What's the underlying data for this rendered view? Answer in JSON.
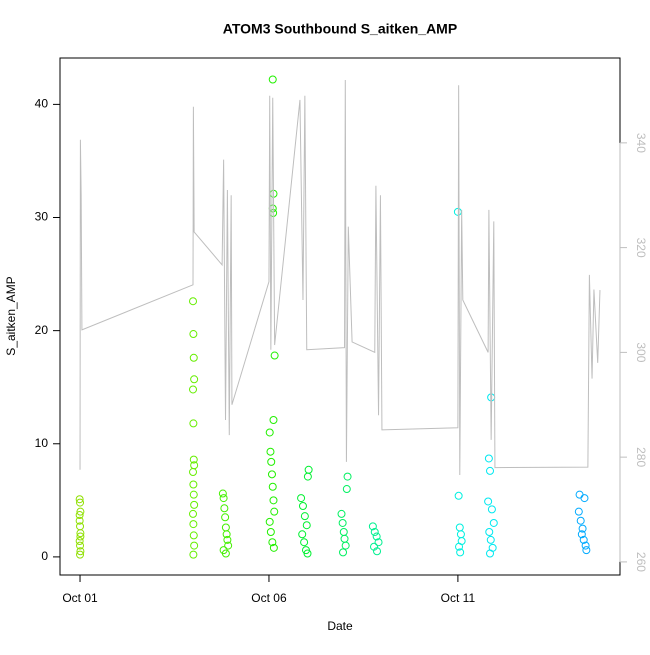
{
  "chart_data": {
    "type": "scatter",
    "title": "ATOM3 Southbound S_aitken_AMP",
    "xlabel": "Date",
    "ylabel": "S_aitken_AMP",
    "xlim": [
      0.47,
      15.29
    ],
    "xticks": [
      {
        "value": 1,
        "label": "Oct 01"
      },
      {
        "value": 6,
        "label": "Oct 06"
      },
      {
        "value": 11,
        "label": "Oct 11"
      }
    ],
    "ylim": [
      -1.6,
      44.1
    ],
    "yticks": [
      0,
      10,
      20,
      30,
      40
    ],
    "y2lim": [
      257.5,
      356.2
    ],
    "y2ticks": [
      260,
      280,
      300,
      320,
      340
    ],
    "series": [
      {
        "type": "scatter",
        "color": "#8fe000",
        "x": [
          0.99,
          1.0,
          1.01,
          0.99,
          1.0,
          1.01,
          0.99,
          1.0,
          1.01,
          1.0,
          0.99,
          1.01
        ],
        "values": [
          5.1,
          4.8,
          4.0,
          3.7,
          2.7,
          1.8,
          1.4,
          1.0,
          0.5,
          0.2,
          3.2,
          2.1
        ]
      },
      {
        "type": "scatter",
        "color": "#66ee00",
        "x": [
          3.99,
          4.0,
          4.01,
          4.02,
          3.99,
          4.0,
          4.01,
          4.02,
          3.99,
          4.0,
          4.01,
          4.02,
          3.99,
          4.0,
          4.01,
          4.02,
          4.0
        ],
        "values": [
          22.6,
          19.7,
          17.6,
          15.7,
          14.8,
          11.8,
          8.6,
          8.1,
          7.5,
          6.4,
          5.5,
          4.6,
          3.8,
          2.9,
          1.9,
          1.0,
          0.2
        ]
      },
      {
        "type": "scatter",
        "color": "#44f000",
        "x": [
          4.78,
          4.8,
          4.82,
          4.84,
          4.86,
          4.88,
          4.9,
          4.92,
          4.8,
          4.86
        ],
        "values": [
          5.6,
          5.2,
          4.3,
          3.5,
          2.6,
          2.0,
          1.5,
          1.0,
          0.6,
          0.3
        ]
      },
      {
        "type": "scatter",
        "color": "#22f000",
        "x": [
          6.1,
          6.12,
          6.1,
          6.11,
          6.15,
          6.12,
          6.02,
          6.04,
          6.06,
          6.08,
          6.1,
          6.12,
          6.14,
          6.02,
          6.05,
          6.09,
          6.13
        ],
        "values": [
          42.2,
          32.1,
          30.8,
          30.4,
          17.8,
          12.1,
          11.0,
          9.3,
          8.4,
          7.3,
          6.2,
          5.0,
          4.0,
          3.1,
          2.2,
          1.3,
          0.8
        ]
      },
      {
        "type": "scatter",
        "color": "#00f030",
        "x": [
          7.05,
          7.03,
          6.85,
          6.9,
          6.95,
          7.0,
          6.88,
          6.93,
          6.98,
          7.02
        ],
        "values": [
          7.7,
          7.1,
          5.2,
          4.5,
          3.6,
          2.8,
          2.0,
          1.3,
          0.6,
          0.3
        ]
      },
      {
        "type": "scatter",
        "color": "#00f060",
        "x": [
          8.08,
          8.06,
          7.92,
          7.95,
          7.98,
          8.0,
          8.03,
          7.96
        ],
        "values": [
          7.1,
          6.0,
          3.8,
          3.0,
          2.2,
          1.6,
          1.0,
          0.4
        ]
      },
      {
        "type": "scatter",
        "color": "#00f090",
        "x": [
          8.75,
          8.8,
          8.85,
          8.9,
          8.78,
          8.86
        ],
        "values": [
          2.7,
          2.2,
          1.8,
          1.3,
          0.9,
          0.5
        ]
      },
      {
        "type": "scatter",
        "color": "#00f0e0",
        "x": [
          11.0,
          11.02,
          11.05,
          11.08,
          11.1,
          11.03,
          11.06
        ],
        "values": [
          30.5,
          5.4,
          2.6,
          2.0,
          1.4,
          0.9,
          0.4
        ]
      },
      {
        "type": "scatter",
        "color": "#00e8f0",
        "x": [
          11.88,
          11.82,
          11.85,
          11.8,
          11.9,
          11.95,
          11.83,
          11.87,
          11.92,
          11.85
        ],
        "values": [
          14.1,
          8.7,
          7.6,
          4.9,
          4.2,
          3.0,
          2.2,
          1.5,
          0.8,
          0.3
        ]
      },
      {
        "type": "scatter",
        "color": "#00aaff",
        "x": [
          14.22,
          14.35,
          14.2,
          14.25,
          14.3,
          14.28,
          14.33,
          14.38,
          14.4
        ],
        "values": [
          5.5,
          5.2,
          4.0,
          3.2,
          2.5,
          2.0,
          1.5,
          1.0,
          0.6
        ]
      },
      {
        "type": "line",
        "axis": "y2",
        "color": "#bebebe",
        "x": [
          1.0,
          1.01,
          1.03,
          1.05,
          3.99,
          4.0,
          4.02,
          4.76,
          4.8,
          4.85,
          4.9,
          4.95,
          5.0,
          5.02,
          6.0,
          6.02,
          6.05,
          6.1,
          6.15,
          6.82,
          6.9,
          6.95,
          7.0,
          8.0,
          8.02,
          8.05,
          8.1,
          8.2,
          8.8,
          8.83,
          8.9,
          8.95,
          8.99,
          11.0,
          11.02,
          11.05,
          11.1,
          11.13,
          11.8,
          11.82,
          11.88,
          11.95,
          11.98,
          14.44,
          14.48,
          14.55,
          14.6,
          14.7,
          14.76
        ],
        "values": [
          277.6,
          340.6,
          330,
          304.3,
          312.9,
          346.9,
          323,
          316.7,
          336.8,
          287.1,
          331,
          284.2,
          330,
          290,
          313.5,
          349,
          300.5,
          348.6,
          301.4,
          348.2,
          310,
          349,
          300.5,
          300.9,
          352,
          279.1,
          324,
          302,
          300,
          331.8,
          288,
          330,
          285.2,
          285.6,
          351,
          276.6,
          327.2,
          310,
          300,
          327.2,
          283.3,
          325,
          278,
          278.1,
          314.8,
          295,
          312,
          298,
          311.9
        ]
      }
    ]
  }
}
